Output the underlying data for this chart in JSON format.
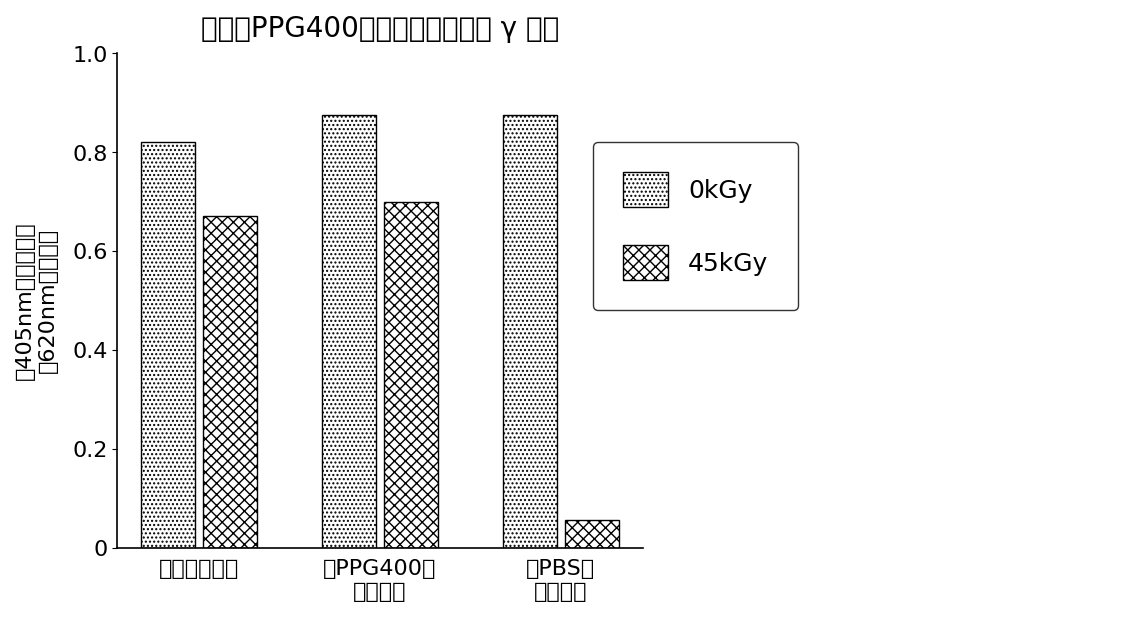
{
  "title": "悬浮在PPG400中的干燥尿激酶的 γ 辐射",
  "ylabel_line1": "在405nm的吸收减去",
  "ylabel_line2": "在620nm的吸收度",
  "categories": [
    "干燥的尿激酶",
    "在PPG400中\n的尿激酶",
    "在PBS中\n的尿激酶"
  ],
  "values_0kGy": [
    0.82,
    0.875,
    0.875
  ],
  "values_45kGy": [
    0.67,
    0.7,
    0.055
  ],
  "ylim": [
    0,
    1.0
  ],
  "yticks": [
    0,
    0.2,
    0.4,
    0.6,
    0.8,
    1.0
  ],
  "legend_labels": [
    "0kGy",
    "45kGy"
  ],
  "bar_width": 0.3,
  "background_color": "#ffffff",
  "bar_color_0kGy": "#ffffff",
  "bar_color_45kGy": "#ffffff",
  "hatch_0kGy": "....",
  "hatch_45kGy": "xxx",
  "title_fontsize": 20,
  "label_fontsize": 16,
  "tick_fontsize": 16,
  "legend_fontsize": 18
}
